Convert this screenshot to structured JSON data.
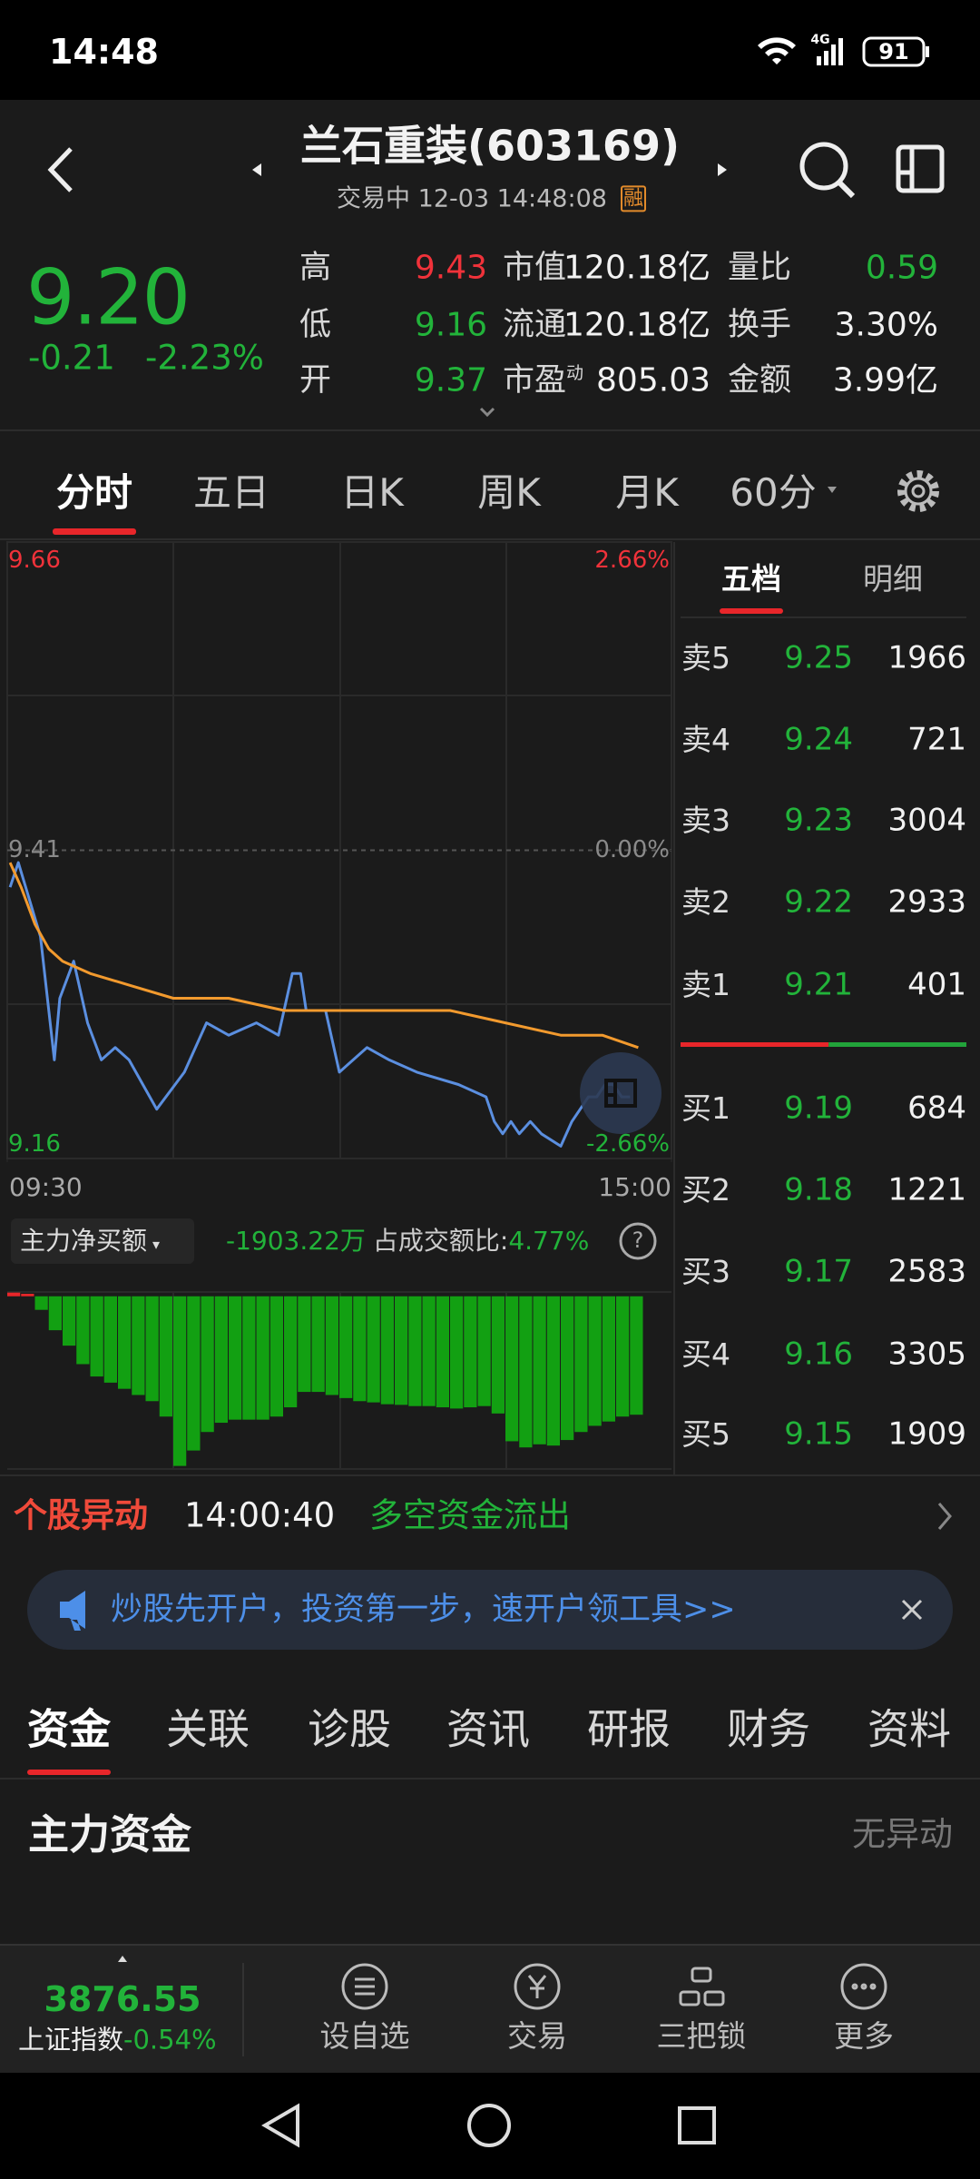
{
  "status_bar": {
    "time": "14:48",
    "network": "4G",
    "battery": "91"
  },
  "header": {
    "title": "兰石重装(603169)",
    "status": "交易中 12-03 14:48:08",
    "badge": "融"
  },
  "quote": {
    "price": "9.20",
    "change": "-0.21",
    "change_pct": "-2.23%"
  },
  "stats": [
    {
      "label": "高",
      "value": "9.43",
      "color": "#f0323a"
    },
    {
      "label": "低",
      "value": "9.16",
      "color": "#22b33a"
    },
    {
      "label": "开",
      "value": "9.37",
      "color": "#22b33a"
    },
    {
      "label": "市值",
      "value": "120.18亿"
    },
    {
      "label": "流通",
      "value": "120.18亿"
    },
    {
      "label": "市盈",
      "label_sup": "动",
      "value": "805.03"
    },
    {
      "label": "量比",
      "value": "0.59",
      "color": "#22b33a"
    },
    {
      "label": "换手",
      "value": "3.30%"
    },
    {
      "label": "金额",
      "value": "3.99亿"
    }
  ],
  "chart_tabs": {
    "items": [
      "分时",
      "五日",
      "日K",
      "周K",
      "月K",
      "60分"
    ],
    "active": 0
  },
  "chart_data": [
    {
      "type": "line",
      "xlim": [
        0,
        240
      ],
      "xticks": [
        {
          "value": 0,
          "label": "09:30"
        },
        {
          "value": 240,
          "label": "15:00"
        }
      ],
      "ylim": [
        9.16,
        9.66
      ],
      "yticks": [
        9.66,
        9.41,
        9.16
      ],
      "y2lim": [
        -2.66,
        2.66
      ],
      "y2ticks": [
        {
          "value": 2.66,
          "label": "2.66%"
        },
        {
          "value": 0,
          "label": "0.00%"
        },
        {
          "value": -2.66,
          "label": "-2.66%"
        }
      ],
      "grid": true,
      "series": [
        {
          "color": "#5b8fe0",
          "x": [
            1,
            4,
            8,
            12,
            17,
            19,
            24,
            29,
            34,
            39,
            44,
            49,
            54,
            64,
            72,
            80,
            90,
            98,
            103,
            106,
            108,
            115,
            120,
            130,
            138,
            148,
            163,
            173,
            176,
            179,
            182,
            185,
            189,
            193,
            200,
            204,
            207,
            210,
            213,
            216,
            219,
            222,
            225
          ],
          "values": [
            9.38,
            9.4,
            9.37,
            9.34,
            9.24,
            9.29,
            9.32,
            9.27,
            9.24,
            9.25,
            9.24,
            9.22,
            9.2,
            9.23,
            9.27,
            9.26,
            9.27,
            9.26,
            9.31,
            9.31,
            9.28,
            9.28,
            9.23,
            9.25,
            9.24,
            9.23,
            9.22,
            9.21,
            9.19,
            9.18,
            9.19,
            9.18,
            9.19,
            9.18,
            9.17,
            9.19,
            9.2,
            9.21,
            9.21,
            9.22,
            9.22,
            9.21,
            9.21
          ]
        },
        {
          "color": "#f29a2e",
          "x": [
            1,
            5,
            10,
            15,
            20,
            30,
            45,
            60,
            80,
            100,
            130,
            160,
            180,
            200,
            215,
            228
          ],
          "values": [
            9.4,
            9.38,
            9.35,
            9.33,
            9.32,
            9.31,
            9.3,
            9.29,
            9.29,
            9.28,
            9.28,
            9.28,
            9.27,
            9.26,
            9.26,
            9.25
          ]
        }
      ]
    },
    {
      "type": "bar",
      "xlim": [
        0,
        240
      ],
      "ylim": [
        -2800,
        70
      ],
      "colors": {
        "positive": "#e8262a",
        "negative": "#12a012"
      },
      "x": [
        0,
        5,
        10,
        15,
        20,
        25,
        30,
        35,
        40,
        45,
        50,
        55,
        60,
        65,
        70,
        75,
        80,
        85,
        90,
        95,
        100,
        105,
        110,
        115,
        120,
        125,
        130,
        135,
        140,
        145,
        150,
        155,
        160,
        165,
        170,
        175,
        180,
        185,
        190,
        195,
        200,
        205,
        210,
        215,
        220,
        225
      ],
      "values": [
        60,
        40,
        -220,
        -550,
        -800,
        -1100,
        -1300,
        -1400,
        -1500,
        -1600,
        -1700,
        -1950,
        -2750,
        -2500,
        -2200,
        -2050,
        -2000,
        -2000,
        -2000,
        -1950,
        -1800,
        -1550,
        -1550,
        -1600,
        -1650,
        -1700,
        -1720,
        -1750,
        -1760,
        -1780,
        -1780,
        -1800,
        -1820,
        -1800,
        -1780,
        -1900,
        -2350,
        -2450,
        -2400,
        -2420,
        -2330,
        -2200,
        -2100,
        -2030,
        -1950,
        -1920
      ]
    }
  ],
  "order_book": {
    "tabs": [
      "五档",
      "明细"
    ],
    "active": 0,
    "price_color": "#22b33a",
    "asks": [
      {
        "label": "卖5",
        "price": "9.25",
        "volume": "1966"
      },
      {
        "label": "卖4",
        "price": "9.24",
        "volume": "721"
      },
      {
        "label": "卖3",
        "price": "9.23",
        "volume": "3004"
      },
      {
        "label": "卖2",
        "price": "9.22",
        "volume": "2933"
      },
      {
        "label": "卖1",
        "price": "9.21",
        "volume": "401"
      }
    ],
    "bids": [
      {
        "label": "买1",
        "price": "9.19",
        "volume": "684"
      },
      {
        "label": "买2",
        "price": "9.18",
        "volume": "1221"
      },
      {
        "label": "买3",
        "price": "9.17",
        "volume": "2583"
      },
      {
        "label": "买4",
        "price": "9.16",
        "volume": "3305"
      },
      {
        "label": "买5",
        "price": "9.15",
        "volume": "1909"
      }
    ]
  },
  "fund_flow": {
    "selector": "主力净买额",
    "value": "-1903.22万",
    "ratio_label": "占成交额比:",
    "ratio": "4.77%"
  },
  "alert": {
    "title": "个股异动",
    "time": "14:00:40",
    "event": "多空资金流出"
  },
  "banner": {
    "text": "炒股先开户，投资第一步，速开户领工具>>"
  },
  "section_tabs": {
    "items": [
      "资金",
      "关联",
      "诊股",
      "资讯",
      "研报",
      "财务",
      "资料"
    ],
    "active": 0
  },
  "section": {
    "title": "主力资金",
    "status": "无异动"
  },
  "bottom_bar": {
    "index": {
      "value": "3876.55",
      "name": "上证指数",
      "change": "-0.54%"
    },
    "items": [
      "设自选",
      "交易",
      "三把锁",
      "更多"
    ]
  }
}
